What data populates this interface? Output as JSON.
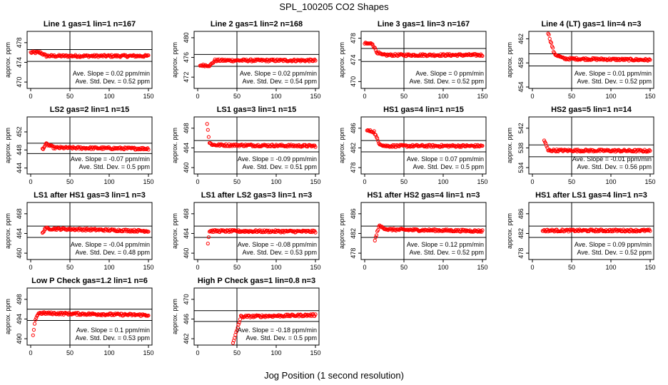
{
  "figure": {
    "title": "SPL_100205  CO2 Shapes",
    "xlabel": "Jog Position (1 second resolution)",
    "ylabel": "approx. ppm",
    "slope_prefix": "Ave. Slope = ",
    "slope_unit": "ppm/min",
    "std_prefix": "Ave. Std. Dev. = ",
    "std_unit": "ppm",
    "colors": {
      "points": "#ff0000",
      "axes": "#000000",
      "background": "#ffffff"
    }
  },
  "chart_data": [
    {
      "type": "scatter",
      "title": "Line 1 gas=1 lin=1 n=167",
      "xlim": [
        0,
        150
      ],
      "xticks": [
        0,
        50,
        100,
        150
      ],
      "ylim": [
        469,
        480
      ],
      "yticks": [
        470,
        474,
        478
      ],
      "hlines": [
        476.6,
        474.2
      ],
      "vline": 50,
      "slope": "0.02",
      "std": "0.52",
      "points_desc": [
        [
          0,
          476
        ],
        [
          12,
          476
        ],
        [
          20,
          475.3
        ],
        [
          150,
          475.3
        ]
      ]
    },
    {
      "type": "scatter",
      "title": "Line 2 gas=1 lin=2 n=168",
      "xlim": [
        0,
        150
      ],
      "xticks": [
        0,
        50,
        100,
        150
      ],
      "ylim": [
        470,
        481
      ],
      "yticks": [
        472,
        476,
        480
      ],
      "hlines": [
        476.6,
        474.2
      ],
      "vline": 50,
      "slope": "0.02",
      "std": "0.54",
      "points_desc": [
        [
          3,
          474.4
        ],
        [
          16,
          474.4
        ],
        [
          22,
          475.4
        ],
        [
          150,
          475.4
        ]
      ]
    },
    {
      "type": "scatter",
      "title": "Line 3 gas=1 lin=3 n=167",
      "xlim": [
        0,
        150
      ],
      "xticks": [
        0,
        50,
        100,
        150
      ],
      "ylim": [
        469,
        479
      ],
      "yticks": [
        470,
        474,
        478
      ],
      "hlines": [
        476.1,
        473.7
      ],
      "vline": 50,
      "slope": "0",
      "std": "0.52",
      "points_desc": [
        [
          0,
          477
        ],
        [
          10,
          477
        ],
        [
          15,
          475.5
        ],
        [
          22,
          474.9
        ],
        [
          150,
          474.9
        ]
      ]
    },
    {
      "type": "scatter",
      "title": "Line 4 (LT) gas=1 lin=4 n=3",
      "xlim": [
        0,
        150
      ],
      "xticks": [
        0,
        50,
        100,
        150
      ],
      "ylim": [
        454,
        463
      ],
      "yticks": [
        454,
        458,
        462
      ],
      "hlines": [
        459.5,
        457.5
      ],
      "vline": 50,
      "slope": "0.01",
      "std": "0.52",
      "points_desc": [
        [
          20,
          463
        ],
        [
          28,
          459.5
        ],
        [
          40,
          458.7
        ],
        [
          150,
          458.5
        ]
      ]
    },
    {
      "type": "scatter",
      "title": "LS2 gas=2 lin=1 n=15",
      "xlim": [
        0,
        150
      ],
      "xticks": [
        0,
        50,
        100,
        150
      ],
      "ylim": [
        443,
        455
      ],
      "yticks": [
        444,
        448,
        452
      ],
      "hlines": [
        449.5,
        447.2
      ],
      "vline": 50,
      "slope": "-0.07",
      "std": "0.5",
      "points_desc": [
        [
          15,
          448.2
        ],
        [
          20,
          449.3
        ],
        [
          30,
          448.5
        ],
        [
          150,
          448.3
        ]
      ]
    },
    {
      "type": "scatter",
      "title": "LS1 gas=3 lin=1 n=15",
      "xlim": [
        0,
        150
      ],
      "xticks": [
        0,
        50,
        100,
        150
      ],
      "ylim": [
        459,
        470
      ],
      "yticks": [
        460,
        464,
        468
      ],
      "hlines": [
        465.5,
        463.2
      ],
      "vline": 50,
      "slope": "-0.09",
      "std": "0.51",
      "points_desc": [
        [
          12,
          469
        ],
        [
          15,
          465
        ],
        [
          20,
          464.6
        ],
        [
          150,
          464.4
        ]
      ]
    },
    {
      "type": "scatter",
      "title": "HS1 gas=4 lin=1 n=15",
      "xlim": [
        0,
        150
      ],
      "xticks": [
        0,
        50,
        100,
        150
      ],
      "ylim": [
        477,
        488
      ],
      "yticks": [
        478,
        482,
        486
      ],
      "hlines": [
        483.5,
        481.2
      ],
      "vline": 50,
      "slope": "0.07",
      "std": "0.5",
      "points_desc": [
        [
          3,
          485.5
        ],
        [
          12,
          485.3
        ],
        [
          18,
          483
        ],
        [
          25,
          482.4
        ],
        [
          150,
          482.4
        ]
      ]
    },
    {
      "type": "scatter",
      "title": "HS2 gas=5 lin=1 n=14",
      "xlim": [
        0,
        150
      ],
      "xticks": [
        0,
        50,
        100,
        150
      ],
      "ylim": [
        533,
        544
      ],
      "yticks": [
        534,
        538,
        542
      ],
      "hlines": [
        538.6,
        536.2
      ],
      "vline": 50,
      "slope": "-0.01",
      "std": "0.56",
      "points_desc": [
        [
          15,
          539.6
        ],
        [
          20,
          537.5
        ],
        [
          150,
          537.4
        ]
      ]
    },
    {
      "type": "scatter",
      "title": "LS1 after HS1 gas=3 lin=1 n=3",
      "xlim": [
        0,
        150
      ],
      "xticks": [
        0,
        50,
        100,
        150
      ],
      "ylim": [
        459,
        470
      ],
      "yticks": [
        460,
        464,
        468
      ],
      "hlines": [
        465.5,
        463.2
      ],
      "vline": 50,
      "slope": "-0.04",
      "std": "0.48",
      "points_desc": [
        [
          15,
          464
        ],
        [
          18,
          465
        ],
        [
          150,
          464.5
        ]
      ]
    },
    {
      "type": "scatter",
      "title": "LS1 after LS2 gas=3 lin=1 n=3",
      "xlim": [
        0,
        150
      ],
      "xticks": [
        0,
        50,
        100,
        150
      ],
      "ylim": [
        459,
        470
      ],
      "yticks": [
        460,
        464,
        468
      ],
      "hlines": [
        465.5,
        463.2
      ],
      "vline": 50,
      "slope": "-0.08",
      "std": "0.53",
      "points_desc": [
        [
          13,
          462
        ],
        [
          15,
          464.5
        ],
        [
          150,
          464.4
        ]
      ]
    },
    {
      "type": "scatter",
      "title": "HS1 after HS2 gas=4 lin=1 n=3",
      "xlim": [
        0,
        150
      ],
      "xticks": [
        0,
        50,
        100,
        150
      ],
      "ylim": [
        477,
        488
      ],
      "yticks": [
        478,
        482,
        486
      ],
      "hlines": [
        483.5,
        481.2
      ],
      "vline": 50,
      "slope": "0.12",
      "std": "0.52",
      "points_desc": [
        [
          13,
          480.5
        ],
        [
          18,
          483.5
        ],
        [
          30,
          482.8
        ],
        [
          150,
          482.5
        ]
      ]
    },
    {
      "type": "scatter",
      "title": "HS1 after LS1 gas=4 lin=1 n=3",
      "xlim": [
        0,
        150
      ],
      "xticks": [
        0,
        50,
        100,
        150
      ],
      "ylim": [
        477,
        488
      ],
      "yticks": [
        478,
        482,
        486
      ],
      "hlines": [
        483.5,
        481.2
      ],
      "vline": 50,
      "slope": "0.09",
      "std": "0.52",
      "points_desc": [
        [
          13,
          482.6
        ],
        [
          150,
          482.6
        ]
      ]
    },
    {
      "type": "scatter",
      "title": "Low P Check gas=1.2 lin=1 n=6",
      "xlim": [
        0,
        150
      ],
      "xticks": [
        0,
        50,
        100,
        150
      ],
      "ylim": [
        489,
        500
      ],
      "yticks": [
        490,
        494,
        498
      ],
      "hlines": [
        496,
        493.7
      ],
      "vline": 50,
      "slope": "0.1",
      "std": "0.53",
      "points_desc": [
        [
          3,
          490.5
        ],
        [
          6,
          494
        ],
        [
          10,
          495.2
        ],
        [
          150,
          494.8
        ]
      ]
    },
    {
      "type": "scatter",
      "title": "High P Check gas=1 lin=0.8 n=3",
      "xlim": [
        0,
        150
      ],
      "xticks": [
        0,
        50,
        100,
        150
      ],
      "ylim": [
        461,
        472
      ],
      "yticks": [
        462,
        466,
        470
      ],
      "hlines": [
        467.7,
        465.5
      ],
      "vline": 50,
      "slope": "-0.18",
      "std": "0.5",
      "points_desc": [
        [
          45,
          461
        ],
        [
          55,
          466.5
        ],
        [
          150,
          466.8
        ]
      ]
    }
  ]
}
